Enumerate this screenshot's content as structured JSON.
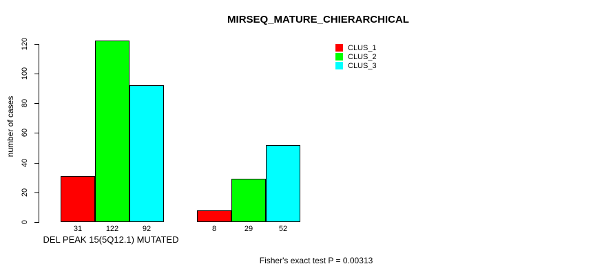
{
  "page": {
    "background_color": "#ffffff",
    "foreground_color": "#000000"
  },
  "chart_data": {
    "type": "bar",
    "title": "MIRSEQ_MATURE_CHIERARCHICAL",
    "xlabel": "",
    "ylabel": "number of cases",
    "ylim": [
      0,
      120
    ],
    "yticks": [
      0,
      20,
      40,
      60,
      80,
      100,
      120
    ],
    "grid": false,
    "legend_position": "top-right",
    "bar_value_labels": true,
    "series": [
      {
        "name": "CLUS_1",
        "color": "#ff0000",
        "values": [
          31,
          8
        ]
      },
      {
        "name": "CLUS_2",
        "color": "#00ff00",
        "values": [
          122,
          29
        ]
      },
      {
        "name": "CLUS_3",
        "color": "#00ffff",
        "values": [
          92,
          52
        ]
      }
    ],
    "groups": [
      {
        "label": "DEL PEAK 15(5Q12.1) MUTATED",
        "values": [
          31,
          122,
          92
        ]
      },
      {
        "label": "",
        "values": [
          8,
          29,
          52
        ]
      }
    ],
    "footer": "Fisher's exact test P = 0.00313"
  }
}
